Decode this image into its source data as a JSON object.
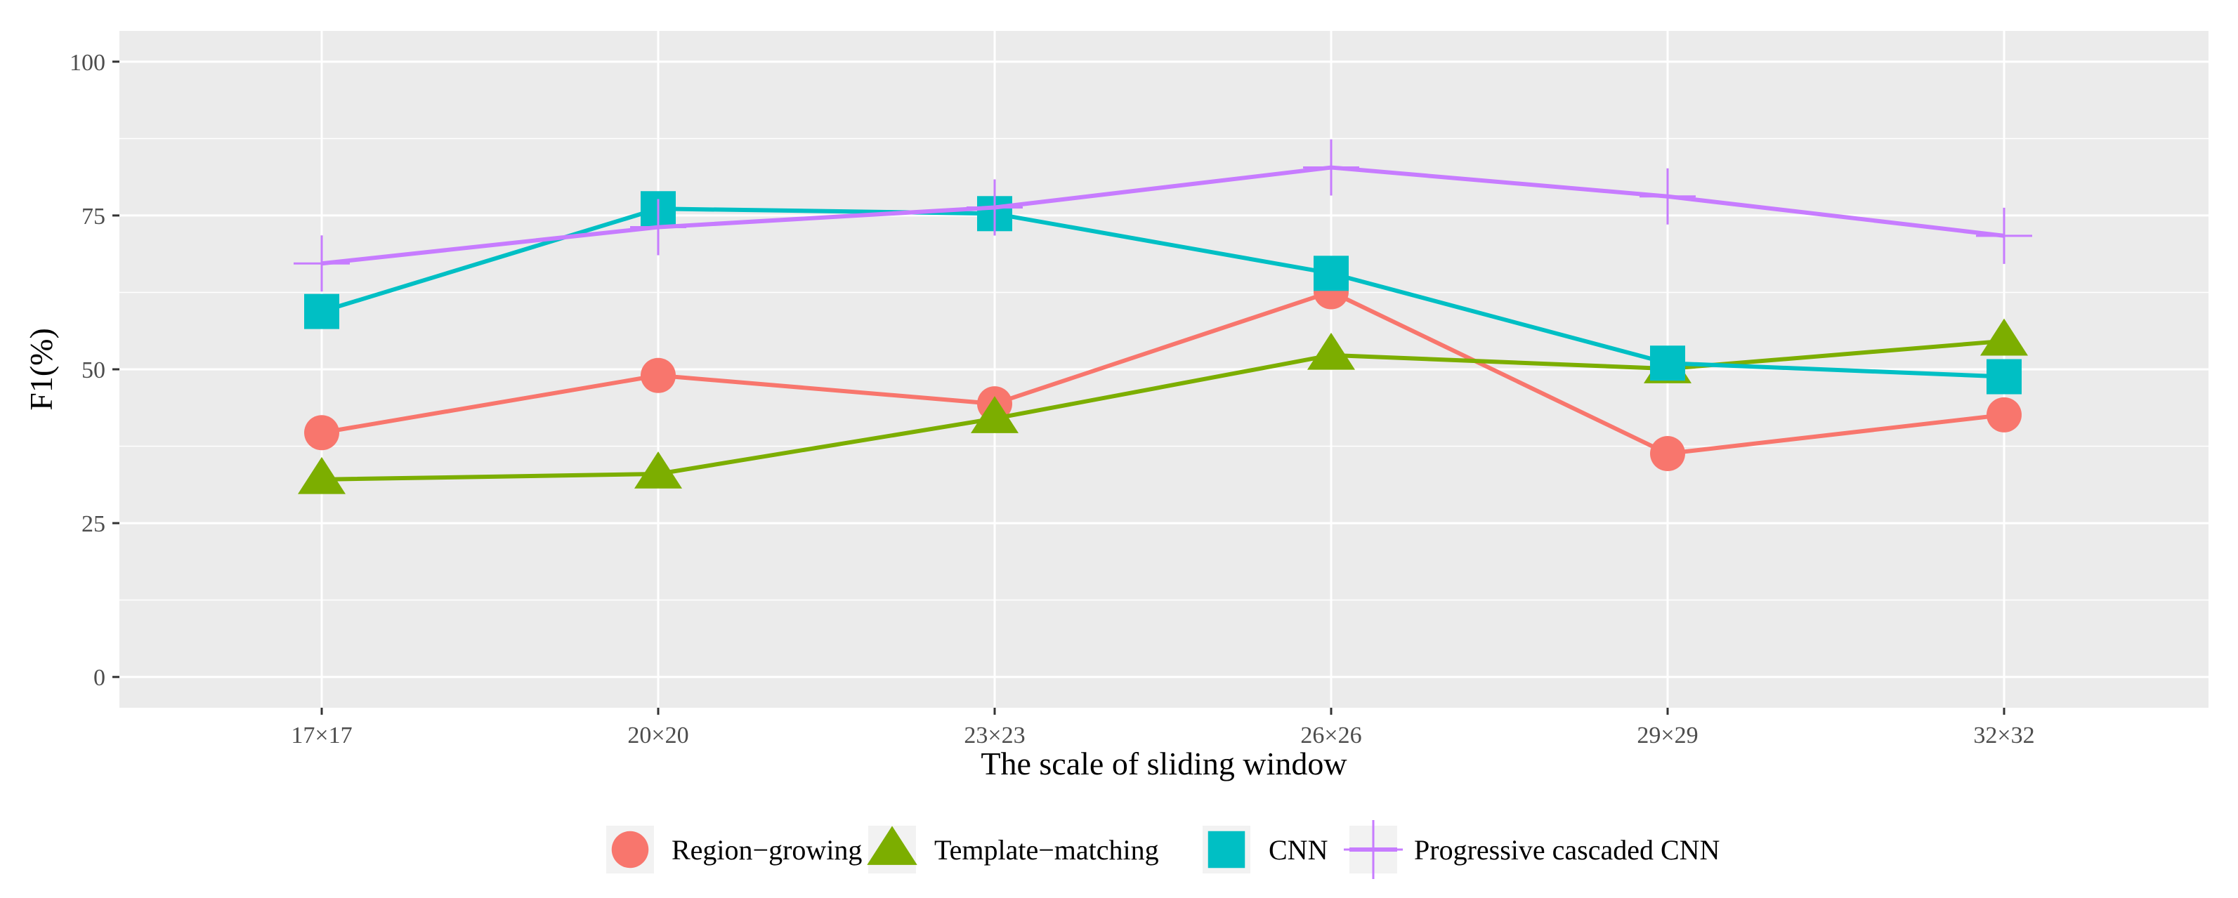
{
  "chart_data": {
    "type": "line",
    "title": "",
    "xlabel": "The scale of sliding window",
    "ylabel": "F1(%)",
    "categories": [
      "17×17",
      "20×20",
      "23×23",
      "26×26",
      "29×29",
      "32×32"
    ],
    "ylim": [
      -5,
      105
    ],
    "yticks": [
      0,
      25,
      50,
      75,
      100
    ],
    "grid": true,
    "legend_position": "bottom",
    "series": [
      {
        "name": "Region−growing",
        "marker": "circle",
        "color": "#F8766D",
        "values": [
          39.7,
          49.0,
          44.4,
          62.6,
          36.3,
          42.6
        ]
      },
      {
        "name": "Template−matching",
        "marker": "triangle",
        "color": "#7CAE00",
        "values": [
          32.1,
          33.0,
          42.0,
          52.3,
          50.1,
          54.6
        ]
      },
      {
        "name": "CNN",
        "marker": "square",
        "color": "#00BFC4",
        "values": [
          59.4,
          76.1,
          75.3,
          65.6,
          51.0,
          48.8
        ]
      },
      {
        "name": "Progressive cascaded CNN",
        "marker": "cross",
        "color": "#C77CFF",
        "values": [
          67.2,
          73.1,
          76.3,
          82.8,
          78.1,
          71.7
        ]
      }
    ]
  }
}
